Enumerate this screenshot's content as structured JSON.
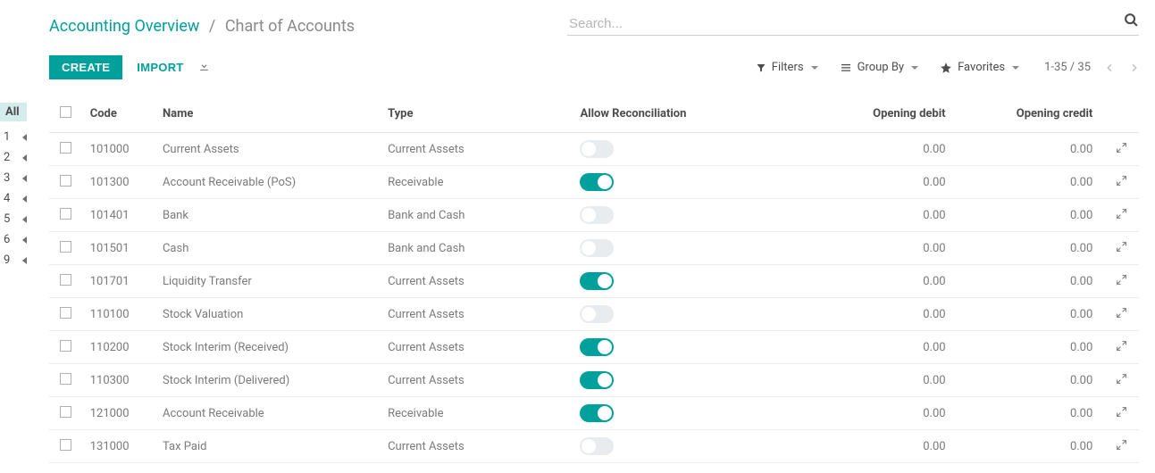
{
  "breadcrumb": {
    "link": "Accounting Overview",
    "current": "Chart of Accounts"
  },
  "search": {
    "placeholder": "Search..."
  },
  "actions": {
    "create": "CREATE",
    "import": "IMPORT"
  },
  "filters": {
    "filters": "Filters",
    "groupby": "Group By",
    "favorites": "Favorites"
  },
  "pager": {
    "text": "1-35 / 35"
  },
  "left_index": {
    "all": "All",
    "items": [
      "1",
      "2",
      "3",
      "4",
      "5",
      "6",
      "9"
    ]
  },
  "table": {
    "headers": {
      "code": "Code",
      "name": "Name",
      "type": "Type",
      "recon": "Allow Reconciliation",
      "debit": "Opening debit",
      "credit": "Opening credit"
    },
    "rows": [
      {
        "code": "101000",
        "name": "Current Assets",
        "type": "Current Assets",
        "recon": false,
        "debit": "0.00",
        "credit": "0.00"
      },
      {
        "code": "101300",
        "name": "Account Receivable (PoS)",
        "type": "Receivable",
        "recon": true,
        "debit": "0.00",
        "credit": "0.00"
      },
      {
        "code": "101401",
        "name": "Bank",
        "type": "Bank and Cash",
        "recon": false,
        "debit": "0.00",
        "credit": "0.00"
      },
      {
        "code": "101501",
        "name": "Cash",
        "type": "Bank and Cash",
        "recon": false,
        "debit": "0.00",
        "credit": "0.00"
      },
      {
        "code": "101701",
        "name": "Liquidity Transfer",
        "type": "Current Assets",
        "recon": true,
        "debit": "0.00",
        "credit": "0.00"
      },
      {
        "code": "110100",
        "name": "Stock Valuation",
        "type": "Current Assets",
        "recon": false,
        "debit": "0.00",
        "credit": "0.00"
      },
      {
        "code": "110200",
        "name": "Stock Interim (Received)",
        "type": "Current Assets",
        "recon": true,
        "debit": "0.00",
        "credit": "0.00"
      },
      {
        "code": "110300",
        "name": "Stock Interim (Delivered)",
        "type": "Current Assets",
        "recon": true,
        "debit": "0.00",
        "credit": "0.00"
      },
      {
        "code": "121000",
        "name": "Account Receivable",
        "type": "Receivable",
        "recon": true,
        "debit": "0.00",
        "credit": "0.00"
      },
      {
        "code": "131000",
        "name": "Tax Paid",
        "type": "Current Assets",
        "recon": false,
        "debit": "0.00",
        "credit": "0.00"
      }
    ]
  },
  "colors": {
    "primary": "#00a09d",
    "muted": "#8a8a8a",
    "text": "#4c4c4c",
    "row_text": "#7b7b7b",
    "toggle_off": "#e9ecef",
    "highlight": "#d5ecec",
    "border": "#e5e5e5"
  }
}
